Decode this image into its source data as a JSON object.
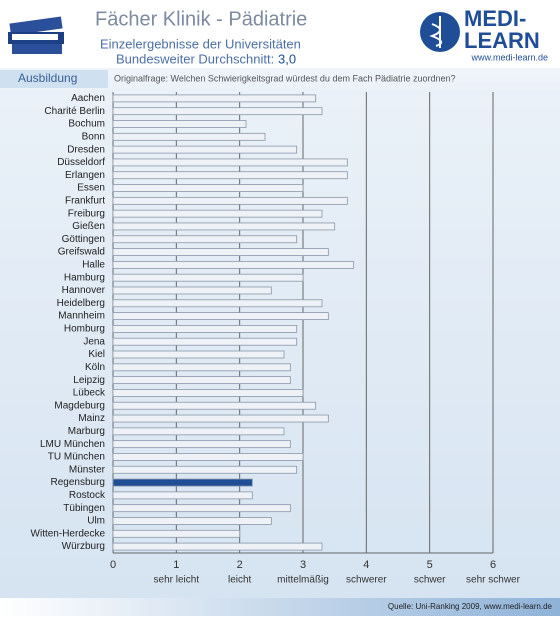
{
  "header": {
    "title": "Fächer Klinik - Pädiatrie",
    "subtitle": "Einzelergebnisse der Universitäten",
    "average_label": "Bundesweiter Durchschnitt:",
    "average_value": "3,0",
    "logo_top": "MEDI-",
    "logo_bottom": "LEARN",
    "logo_url": "www.medi-learn.de",
    "tab": "Ausbildung",
    "question": "Originalfrage: Welchen Schwierigkeitsgrad würdest du dem Fach Pädiatrie zuordnen?"
  },
  "chart_data": {
    "type": "hbar",
    "categories": [
      "Aachen",
      "Charité Berlin",
      "Bochum",
      "Bonn",
      "Dresden",
      "Düsseldorf",
      "Erlangen",
      "Essen",
      "Frankfurt",
      "Freiburg",
      "Gießen",
      "Göttingen",
      "Greifswald",
      "Halle",
      "Hamburg",
      "Hannover",
      "Heidelberg",
      "Mannheim",
      "Homburg",
      "Jena",
      "Kiel",
      "Köln",
      "Leipzig",
      "Lübeck",
      "Magdeburg",
      "Mainz",
      "Marburg",
      "LMU München",
      "TU München",
      "Münster",
      "Regensburg",
      "Rostock",
      "Tübingen",
      "Ulm",
      "Witten-Herdecke",
      "Würzburg"
    ],
    "values": [
      3.2,
      3.3,
      2.1,
      2.4,
      2.9,
      3.7,
      3.7,
      3.0,
      3.7,
      3.3,
      3.5,
      2.9,
      3.4,
      3.8,
      3.0,
      2.5,
      3.3,
      3.4,
      2.9,
      2.9,
      2.7,
      2.8,
      2.8,
      3.0,
      3.2,
      3.4,
      2.7,
      2.8,
      3.0,
      2.9,
      2.2,
      2.2,
      2.8,
      2.5,
      2.0,
      3.3
    ],
    "colors": [
      "#eef2f7",
      "#eef2f7",
      "#eef2f7",
      "#eef2f7",
      "#eef2f7",
      "#eef2f7",
      "#eef2f7",
      "#eef2f7",
      "#eef2f7",
      "#eef2f7",
      "#eef2f7",
      "#eef2f7",
      "#eef2f7",
      "#eef2f7",
      "#eef2f7",
      "#eef2f7",
      "#eef2f7",
      "#eef2f7",
      "#eef2f7",
      "#eef2f7",
      "#eef2f7",
      "#eef2f7",
      "#eef2f7",
      "#eef2f7",
      "#eef2f7",
      "#eef2f7",
      "#eef2f7",
      "#eef2f7",
      "#eef2f7",
      "#eef2f7",
      "#1f4e96",
      "#eef2f7",
      "#eef2f7",
      "#eef2f7",
      "#eef2f7",
      "#eef2f7"
    ],
    "xlim": [
      0,
      6
    ],
    "xticks": [
      0,
      1,
      2,
      3,
      4,
      5,
      6
    ],
    "scale_labels": [
      {
        "value": 1,
        "label": "sehr leicht"
      },
      {
        "value": 2,
        "label": "leicht"
      },
      {
        "value": 3,
        "label": "mittelmäßig"
      },
      {
        "value": 4,
        "label": "schwerer"
      },
      {
        "value": 5,
        "label": "schwer"
      },
      {
        "value": 6,
        "label": "sehr schwer"
      }
    ],
    "grid": true
  },
  "footer": {
    "source": "Quelle: Uni-Ranking 2009, www.medi-learn.de"
  }
}
